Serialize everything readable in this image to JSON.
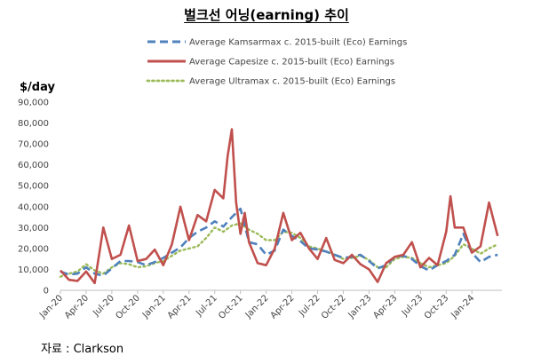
{
  "title": "벌크선 어닝(earning) 추이",
  "source_note": "자료 : Clarkson",
  "chart_data": {
    "type": "line",
    "title": "벌크선 어닝(earning) 추이",
    "ylabel": "$/day",
    "xlabel": "",
    "ylim": [
      0,
      90000
    ],
    "y_ticks": [
      0,
      10000,
      20000,
      30000,
      40000,
      50000,
      60000,
      70000,
      80000,
      90000
    ],
    "y_tick_labels": [
      "0",
      "10,000",
      "20,000",
      "30,000",
      "40,000",
      "50,000",
      "60,000",
      "70,000",
      "80,000",
      "90,000"
    ],
    "x_tick_labels": [
      "Jan-20",
      "Apr-20",
      "Jul-20",
      "Oct-20",
      "Jan-21",
      "Apr-21",
      "Jul-21",
      "Oct-21",
      "Jan-22",
      "Apr-22",
      "Jul-22",
      "Oct-22",
      "Jan-23",
      "Apr-23",
      "Jul-23",
      "Oct-23",
      "Jan-24"
    ],
    "x_tick_months": [
      0,
      3,
      6,
      9,
      12,
      15,
      18,
      21,
      24,
      27,
      30,
      33,
      36,
      39,
      42,
      45,
      48
    ],
    "x_range_months": [
      0,
      51.5
    ],
    "x_unit": "months since Jan-20",
    "legend_position": "top",
    "series": [
      {
        "name": "Average Kamsarmax c. 2015-built (Eco) Earnings",
        "color": "#4f81bd",
        "style": "dashed",
        "x": [
          0,
          1,
          2,
          3,
          4,
          5,
          6,
          7,
          8,
          9,
          10,
          11,
          12,
          13,
          14,
          15,
          16,
          17,
          18,
          19,
          20,
          21,
          22,
          23,
          24,
          25,
          26,
          27,
          28,
          29,
          30,
          31,
          32,
          33,
          34,
          35,
          36,
          37,
          38,
          39,
          40,
          41,
          42,
          43,
          44,
          45,
          46,
          47,
          48,
          49,
          50,
          51
        ],
        "values": [
          9000,
          7500,
          8000,
          11000,
          8000,
          7000,
          10500,
          14000,
          14000,
          13500,
          12000,
          13500,
          15500,
          18000,
          20500,
          25000,
          28000,
          30000,
          33000,
          30500,
          35000,
          39000,
          23000,
          22000,
          17000,
          19000,
          29000,
          26000,
          23500,
          20000,
          19500,
          18500,
          17000,
          15500,
          16000,
          17000,
          14000,
          10500,
          12000,
          16000,
          16500,
          15000,
          11500,
          9500,
          12000,
          14000,
          17000,
          27000,
          18000,
          13500,
          16000,
          17000
        ]
      },
      {
        "name": "Average Capesize c. 2015-built (Eco) Earnings",
        "color": "#c0504d",
        "style": "solid",
        "x": [
          0,
          1,
          2,
          3,
          4,
          5,
          6,
          7,
          8,
          9,
          10,
          11,
          12,
          13,
          14,
          15,
          16,
          17,
          18,
          19,
          19.5,
          20,
          20.5,
          21,
          21.5,
          22,
          23,
          24,
          25,
          26,
          27,
          28,
          29,
          30,
          31,
          32,
          33,
          34,
          35,
          36,
          37,
          38,
          39,
          40,
          41,
          42,
          43,
          44,
          45,
          45.5,
          46,
          47,
          48,
          49,
          50,
          51
        ],
        "values": [
          9500,
          5000,
          4500,
          9000,
          3500,
          30000,
          15000,
          17000,
          31000,
          14000,
          15000,
          19500,
          12000,
          22000,
          40000,
          24000,
          36000,
          33000,
          48000,
          44000,
          64000,
          77000,
          42000,
          27000,
          37000,
          23000,
          13000,
          12000,
          20000,
          37000,
          24000,
          27500,
          20000,
          15000,
          25000,
          14500,
          13000,
          17000,
          12500,
          10000,
          4000,
          13000,
          16000,
          17000,
          23000,
          11000,
          15500,
          12000,
          28000,
          45000,
          30000,
          30000,
          18000,
          21000,
          42000,
          26000
        ]
      },
      {
        "name": "Average Ultramax c. 2015-built (Eco) Earnings",
        "color": "#9bbb59",
        "style": "dotted",
        "x": [
          0,
          1,
          2,
          3,
          4,
          5,
          6,
          7,
          8,
          9,
          10,
          11,
          12,
          13,
          14,
          15,
          16,
          17,
          18,
          19,
          20,
          21,
          22,
          23,
          24,
          25,
          26,
          27,
          28,
          29,
          30,
          31,
          32,
          33,
          34,
          35,
          36,
          37,
          38,
          39,
          40,
          41,
          42,
          43,
          44,
          45,
          46,
          47,
          48,
          49,
          50,
          51
        ],
        "values": [
          6500,
          8000,
          9000,
          12500,
          9500,
          8000,
          11000,
          13000,
          12500,
          11000,
          11500,
          13000,
          14000,
          16500,
          19000,
          20000,
          21000,
          25000,
          30000,
          28000,
          31000,
          32000,
          29000,
          27000,
          24000,
          24000,
          28000,
          27500,
          25000,
          21000,
          20000,
          18500,
          17000,
          15000,
          15500,
          16500,
          14500,
          11000,
          11000,
          15000,
          16000,
          15500,
          13000,
          11000,
          12000,
          13000,
          16500,
          22000,
          20000,
          17500,
          20000,
          22000
        ]
      }
    ]
  }
}
